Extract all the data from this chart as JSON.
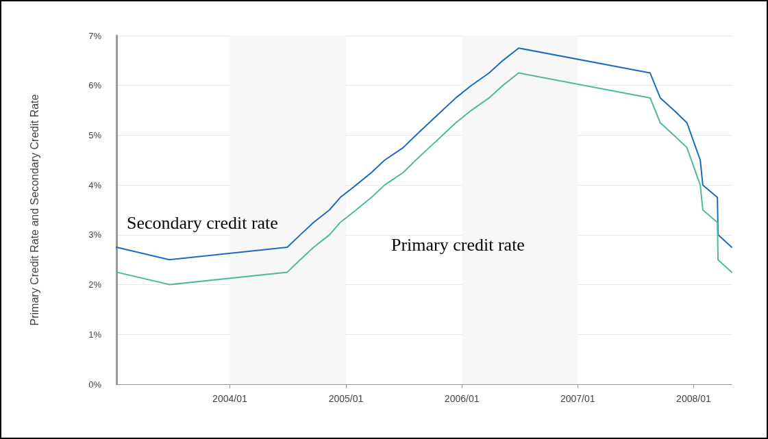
{
  "chart_data": {
    "type": "line",
    "ylabel": "Primary Credit Rate and Secondary Credit Rate",
    "xlim": [
      "2003-01-09",
      "2008-04-30"
    ],
    "xticks": [
      {
        "value": "2004-01-01",
        "label": "2004/01"
      },
      {
        "value": "2005-01-01",
        "label": "2005/01"
      },
      {
        "value": "2006-01-01",
        "label": "2006/01"
      },
      {
        "value": "2007-01-01",
        "label": "2007/01"
      },
      {
        "value": "2008-01-01",
        "label": "2008/01"
      }
    ],
    "ylim": [
      0,
      7
    ],
    "yticks": [
      {
        "value": 0,
        "label": "0%"
      },
      {
        "value": 1,
        "label": "1%"
      },
      {
        "value": 2,
        "label": "2%"
      },
      {
        "value": 3,
        "label": "3%"
      },
      {
        "value": 4,
        "label": "4%"
      },
      {
        "value": 5,
        "label": "5%"
      },
      {
        "value": 6,
        "label": "6%"
      },
      {
        "value": 7,
        "label": "7%"
      }
    ],
    "x": [
      "2003-01-09",
      "2003-06-25",
      "2004-06-30",
      "2004-08-10",
      "2004-09-21",
      "2004-11-10",
      "2004-12-14",
      "2005-02-02",
      "2005-03-22",
      "2005-05-03",
      "2005-06-30",
      "2005-08-09",
      "2005-09-20",
      "2005-11-01",
      "2005-12-13",
      "2006-01-31",
      "2006-03-28",
      "2006-05-10",
      "2006-06-29",
      "2007-08-17",
      "2007-09-18",
      "2007-10-31",
      "2007-12-11",
      "2008-01-22",
      "2008-01-30",
      "2008-03-16",
      "2008-03-18",
      "2008-04-30"
    ],
    "series": [
      {
        "name": "Secondary credit rate",
        "color": "#1a6bc0",
        "values": [
          2.75,
          2.5,
          2.75,
          3.0,
          3.25,
          3.5,
          3.75,
          4.0,
          4.25,
          4.5,
          4.75,
          5.0,
          5.25,
          5.5,
          5.75,
          6.0,
          6.25,
          6.5,
          6.75,
          6.25,
          5.75,
          5.5,
          5.25,
          4.5,
          4.0,
          3.75,
          3.0,
          2.75
        ]
      },
      {
        "name": "Primary credit rate",
        "color": "#4dbb94",
        "values": [
          2.25,
          2.0,
          2.25,
          2.5,
          2.75,
          3.0,
          3.25,
          3.5,
          3.75,
          4.0,
          4.25,
          4.5,
          4.75,
          5.0,
          5.25,
          5.5,
          5.75,
          6.0,
          6.25,
          5.75,
          5.25,
          5.0,
          4.75,
          4.0,
          3.5,
          3.25,
          2.5,
          2.25
        ]
      }
    ],
    "bands": [
      {
        "axis": "x",
        "from": "2004-01-01",
        "to": "2005-01-01",
        "label": null,
        "color": "#f7f7f7"
      },
      {
        "axis": "x",
        "from": "2006-01-01",
        "to": "2007-01-01",
        "label": null,
        "color": "#f7f7f7"
      }
    ],
    "grid": "y",
    "legend": false,
    "marker": "none",
    "line_style": "solid"
  }
}
